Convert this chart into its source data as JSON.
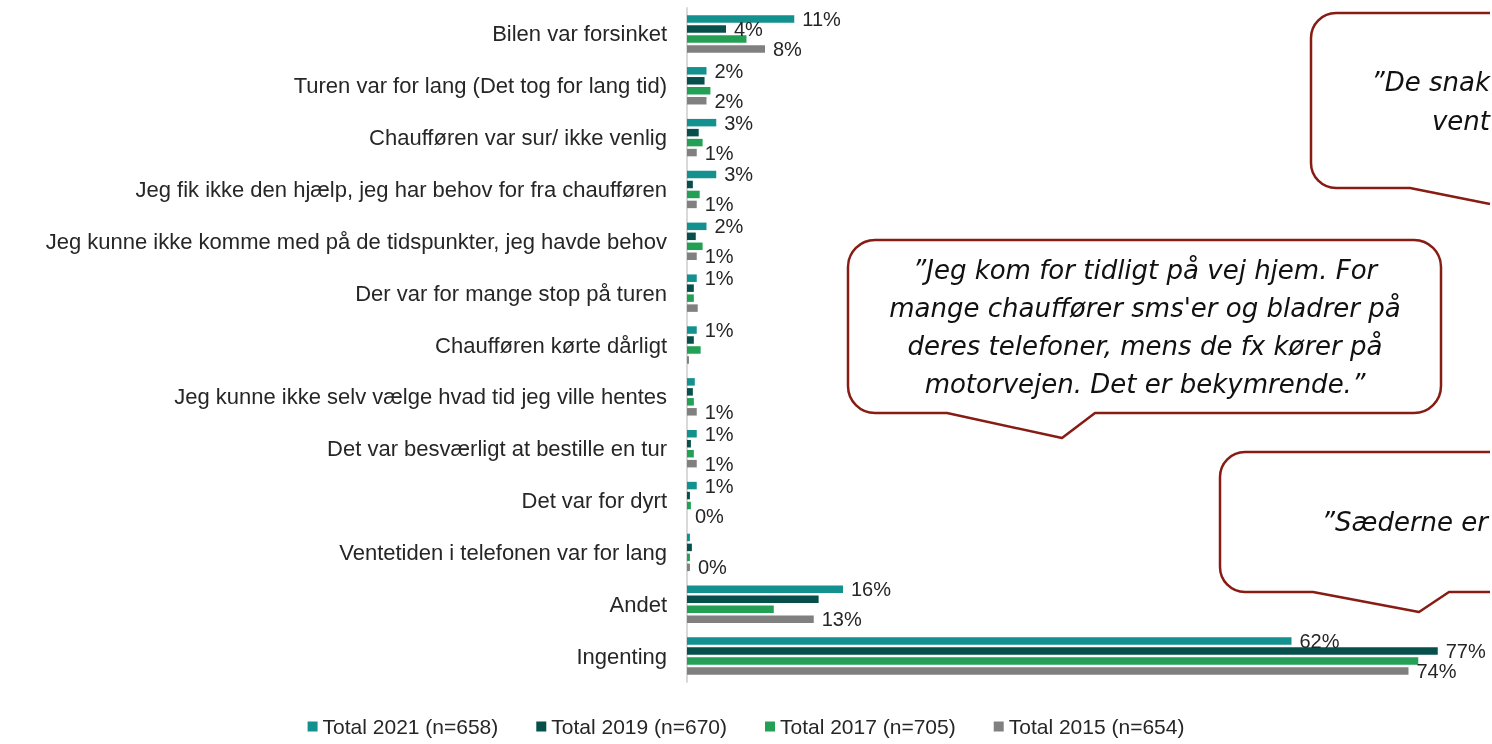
{
  "chart_data": {
    "type": "bar",
    "orientation": "horizontal",
    "categories": [
      "Bilen var forsinket",
      "Turen var for lang (Det tog for lang tid)",
      "Chaufføren var sur/ ikke venlig",
      "Jeg fik ikke den hjælp, jeg har behov for fra chaufføren",
      "Jeg kunne ikke komme med på de tidspunkter, jeg havde behov",
      "Der var for mange stop på turen",
      "Chaufføren kørte dårligt",
      "Jeg kunne ikke selv vælge hvad tid jeg ville hentes",
      "Det var besværligt at bestille en tur",
      "Det var for dyrt",
      "Ventetiden i telefonen var for lang",
      "Andet",
      "Ingenting"
    ],
    "series": [
      {
        "name": "Total 2021 (n=658)",
        "color": "#12918f",
        "values": [
          11,
          2,
          3,
          3,
          2,
          1,
          1,
          0.8,
          1,
          1,
          0.3,
          16,
          62
        ],
        "value_labels": [
          "11%",
          "2%",
          "3%",
          "3%",
          "2%",
          "1%",
          "1%",
          null,
          "1%",
          "1%",
          null,
          "16%",
          "62%"
        ]
      },
      {
        "name": "Total 2019 (n=670)",
        "color": "#074f4b",
        "values": [
          4,
          1.8,
          1.2,
          0.6,
          0.9,
          0.7,
          0.7,
          0.6,
          0.4,
          0.3,
          0.5,
          13.5,
          77
        ],
        "value_labels": [
          "4%",
          null,
          null,
          null,
          null,
          null,
          null,
          null,
          null,
          null,
          null,
          null,
          "77%"
        ]
      },
      {
        "name": "Total 2017 (n=705)",
        "color": "#23a055",
        "values": [
          6.1,
          2.4,
          1.6,
          1.3,
          1.6,
          0.7,
          1.4,
          0.7,
          0.7,
          0.4,
          0.3,
          8.9,
          75
        ]
      },
      {
        "name": "Total 2015 (n=654)",
        "color": "#808080",
        "values": [
          8,
          2,
          1,
          1,
          1,
          1.1,
          0.2,
          1,
          1,
          0,
          0.3,
          13,
          74
        ],
        "value_labels": [
          "8%",
          "2%",
          "1%",
          "1%",
          "1%",
          null,
          null,
          "1%",
          "1%",
          "0%",
          "0%",
          "13%",
          "74%"
        ]
      }
    ],
    "legend": "bottom",
    "tick_labels": "y",
    "annotations": [
      "”De snak\nvent",
      "”Jeg kom for tidligt på vej hjem. For mange chauffører sms'er og bladrer på deres telefoner, mens de fx kører på motorvejen. Det er bekymrende.”",
      "”Sæderne er"
    ]
  }
}
